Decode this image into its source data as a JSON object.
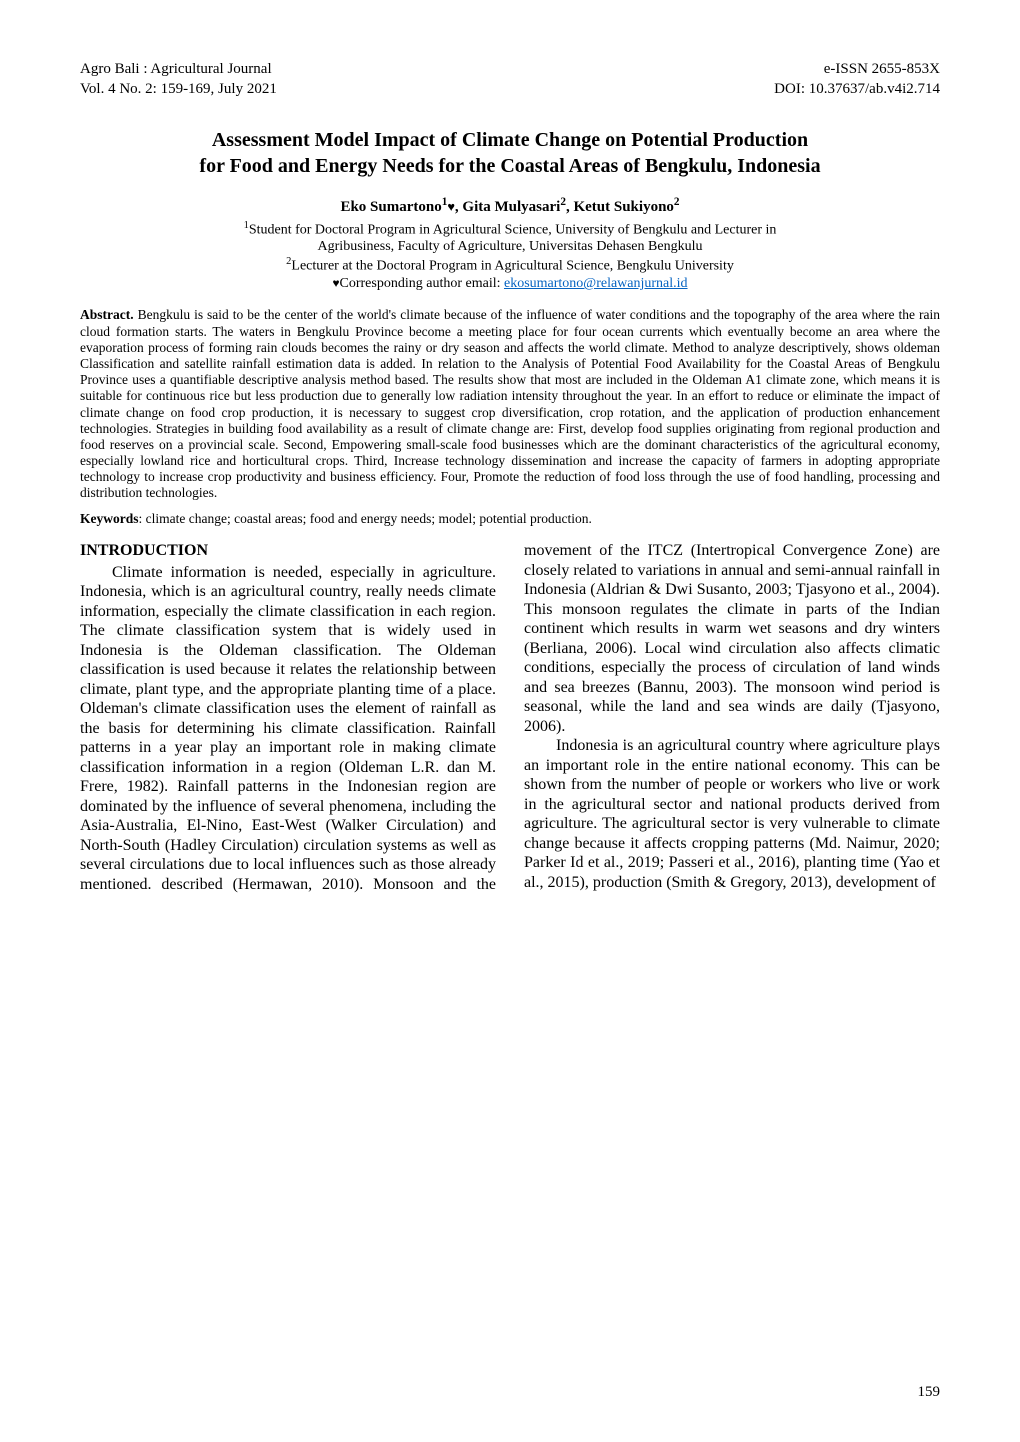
{
  "header": {
    "journal_line1": "Agro Bali : Agricultural Journal",
    "journal_line2": "Vol. 4 No. 2: 159-169, July 2021",
    "eissn": "e-ISSN 2655-853X",
    "doi": "DOI: 10.37637/ab.v4i2.714"
  },
  "title_line1": "Assessment Model Impact of Climate Change on Potential Production",
  "title_line2": "for Food and Energy Needs for the Coastal Areas of Bengkulu, Indonesia",
  "authors_prefix": "Eko Sumartono",
  "authors_sup1": "1",
  "authors_mid": ", Gita Mulyasari",
  "authors_sup2": "2",
  "authors_mid2": ", Ketut Sukiyono",
  "authors_sup3": "2",
  "aff1_sup": "1",
  "aff1_text_a": "Student for Doctoral Program in Agricultural Science, University of Bengkulu and Lecturer in",
  "aff1_text_b": "Agribusiness, Faculty of Agriculture, Universitas Dehasen Bengkulu",
  "aff2_sup": "2",
  "aff2_text": "Lecturer at the Doctoral Program in Agricultural Science, Bengkulu University",
  "corr_label": "Corresponding author email: ",
  "corr_email": "ekosumartono@relawanjurnal.id",
  "abstract_label": "Abstract. ",
  "abstract_text": "Bengkulu is said to be the center of the world's climate because of the influence of water conditions and the topography of the area where the rain cloud formation starts. The waters in Bengkulu Province become a meeting place for four ocean currents which eventually become an area where the evaporation process of forming rain clouds becomes the rainy or dry season and affects the world climate. Method to analyze descriptively, shows oldeman Classification and satellite rainfall estimation data is added. In relation to the Analysis of Potential Food Availability for the Coastal Areas of Bengkulu Province uses a quantifiable descriptive analysis method based. The results show that most are included in the Oldeman A1 climate zone, which means it is suitable for continuous rice but less production due to generally low radiation intensity throughout the year. In an effort to reduce or eliminate the impact of climate change on food crop production, it is necessary to suggest crop diversification, crop rotation, and the application of production enhancement technologies. Strategies in building food availability as a result of climate change are: First, develop food supplies originating from regional production and food reserves on a provincial scale. Second, Empowering small-scale food businesses which are the dominant characteristics of the agricultural economy, especially lowland rice and horticultural crops. Third, Increase technology dissemination and increase the capacity of farmers in adopting appropriate technology to increase crop productivity and business efficiency. Four, Promote the reduction of food loss through the use of food handling, processing and distribution technologies.",
  "keywords_label": "Keywords",
  "keywords_text": ": climate change; coastal areas; food and energy needs; model; potential production.",
  "intro_heading": "INTRODUCTION",
  "intro_p1": "Climate information is needed, especially in agriculture. Indonesia, which is an agricultural country, really needs climate information, especially the climate classification in each region. The climate classification system that is widely used in Indonesia is the Oldeman classification. The Oldeman classification is used because it relates the relationship between climate, plant type, and the appropriate planting time of a place. Oldeman's climate classification uses the element of rainfall as the basis for determining his climate classification. Rainfall patterns in a year play an important role in making climate classification information in a region (Oldeman L.R. dan M. Frere, 1982). Rainfall patterns in the Indonesian region are dominated by the influence of several phenomena, including the Asia-Australia, El-Nino, East-West (Walker Circulation) and North-South (Hadley Circulation) circulation systems as well as several circulations due to local influences such as those already mentioned. described (Hermawan, 2010). Monsoon and the movement of the ITCZ (Intertropical Convergence Zone) are closely related to variations in annual and semi-annual rainfall in Indonesia (Aldrian & Dwi Susanto, 2003; Tjasyono et al., 2004). This monsoon regulates the climate in parts of the Indian continent which results in warm wet seasons and dry winters (Berliana, 2006). Local wind circulation also affects climatic conditions, especially the process of circulation of land winds and sea breezes (Bannu, 2003). The monsoon wind period is seasonal, while the land and sea winds are daily (Tjasyono, 2006).",
  "intro_p2": "Indonesia is an agricultural country where agriculture plays an important role in the entire national economy. This can be shown from the number of people or workers who live or work in the agricultural sector and national products derived from agriculture. The agricultural sector is very vulnerable to climate change because it affects cropping patterns (Md. Naimur, 2020; Parker Id et al., 2019; Passeri et al., 2016), planting time (Yao et al., 2015), production (Smith & Gregory, 2013), development of",
  "page_number": "159"
}
